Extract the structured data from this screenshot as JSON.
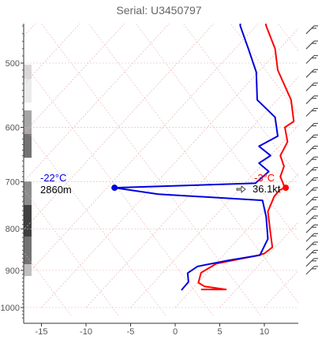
{
  "chart_data": {
    "type": "line",
    "title": "Serial: U3450797",
    "xlabel": "",
    "ylabel": "",
    "x_ticks": [
      -15,
      -10,
      -5,
      0,
      5,
      10
    ],
    "x_tick_labels": [
      "-15",
      "-10",
      "-5",
      "0",
      "5",
      "10"
    ],
    "xlim": [
      -17,
      14
    ],
    "y_ticks": [
      500,
      600,
      700,
      800,
      900,
      1000
    ],
    "y_tick_labels": [
      "500",
      "600",
      "700",
      "800",
      "900",
      "1000"
    ],
    "ylim": [
      1040,
      440
    ],
    "y_scale": "log",
    "grid": true,
    "series": [
      {
        "role": "temperature",
        "color": "#ff0000",
        "points": [
          {
            "t": 2.9,
            "p": 950
          },
          {
            "t": 5.7,
            "p": 950
          },
          {
            "t": 3.3,
            "p": 942
          },
          {
            "t": 2.6,
            "p": 932
          },
          {
            "t": 2.9,
            "p": 906
          },
          {
            "t": 4.6,
            "p": 883
          },
          {
            "t": 9.4,
            "p": 862
          },
          {
            "t": 10.0,
            "p": 858
          },
          {
            "t": 10.9,
            "p": 843
          },
          {
            "t": 10.7,
            "p": 812
          },
          {
            "t": 10.4,
            "p": 762
          },
          {
            "t": 11.1,
            "p": 730
          },
          {
            "t": 11.7,
            "p": 717
          },
          {
            "t": 12.3,
            "p": 712
          },
          {
            "t": 11.8,
            "p": 690
          },
          {
            "t": 12.2,
            "p": 670
          },
          {
            "t": 11.8,
            "p": 650
          },
          {
            "t": 12.6,
            "p": 625
          },
          {
            "t": 12.3,
            "p": 600
          },
          {
            "t": 13.3,
            "p": 590
          },
          {
            "t": 13.0,
            "p": 555
          },
          {
            "t": 11.5,
            "p": 510
          },
          {
            "t": 11.2,
            "p": 480
          },
          {
            "t": 10.2,
            "p": 450
          },
          {
            "t": 10.0,
            "p": 435
          }
        ]
      },
      {
        "role": "dewpoint",
        "color": "#0000dd",
        "points": [
          {
            "t": 0.7,
            "p": 952
          },
          {
            "t": 1.5,
            "p": 930
          },
          {
            "t": 1.4,
            "p": 907
          },
          {
            "t": 2.5,
            "p": 890
          },
          {
            "t": 5.9,
            "p": 875
          },
          {
            "t": 9.5,
            "p": 862
          },
          {
            "t": 10.4,
            "p": 823
          },
          {
            "t": 10.2,
            "p": 773
          },
          {
            "t": 9.8,
            "p": 738
          },
          {
            "t": -1.9,
            "p": 725
          },
          {
            "t": -6.8,
            "p": 712
          },
          {
            "t": 9.0,
            "p": 703
          },
          {
            "t": 10.5,
            "p": 680
          },
          {
            "t": 9.4,
            "p": 664
          },
          {
            "t": 10.7,
            "p": 650
          },
          {
            "t": 9.4,
            "p": 633
          },
          {
            "t": 11.5,
            "p": 615
          },
          {
            "t": 11.2,
            "p": 583
          },
          {
            "t": 9.2,
            "p": 555
          },
          {
            "t": 9.1,
            "p": 513
          },
          {
            "t": 8.2,
            "p": 480
          },
          {
            "t": 7.3,
            "p": 450
          },
          {
            "t": 7.3,
            "p": 435
          }
        ]
      }
    ],
    "annotations": {
      "temperature_marker": {
        "t": 12.4,
        "p": 712,
        "label": "-3°C"
      },
      "dewpoint_marker": {
        "t": -6.8,
        "p": 712,
        "label": "-22°C",
        "sublabel": "2860m"
      },
      "wind_label": "36.1kt"
    },
    "wind_barbs_pressures": [
      455,
      475,
      495,
      515,
      535,
      555,
      575,
      600,
      620,
      640,
      660,
      680,
      700,
      720,
      740,
      760,
      780,
      800,
      820,
      840,
      860,
      880,
      900
    ]
  }
}
